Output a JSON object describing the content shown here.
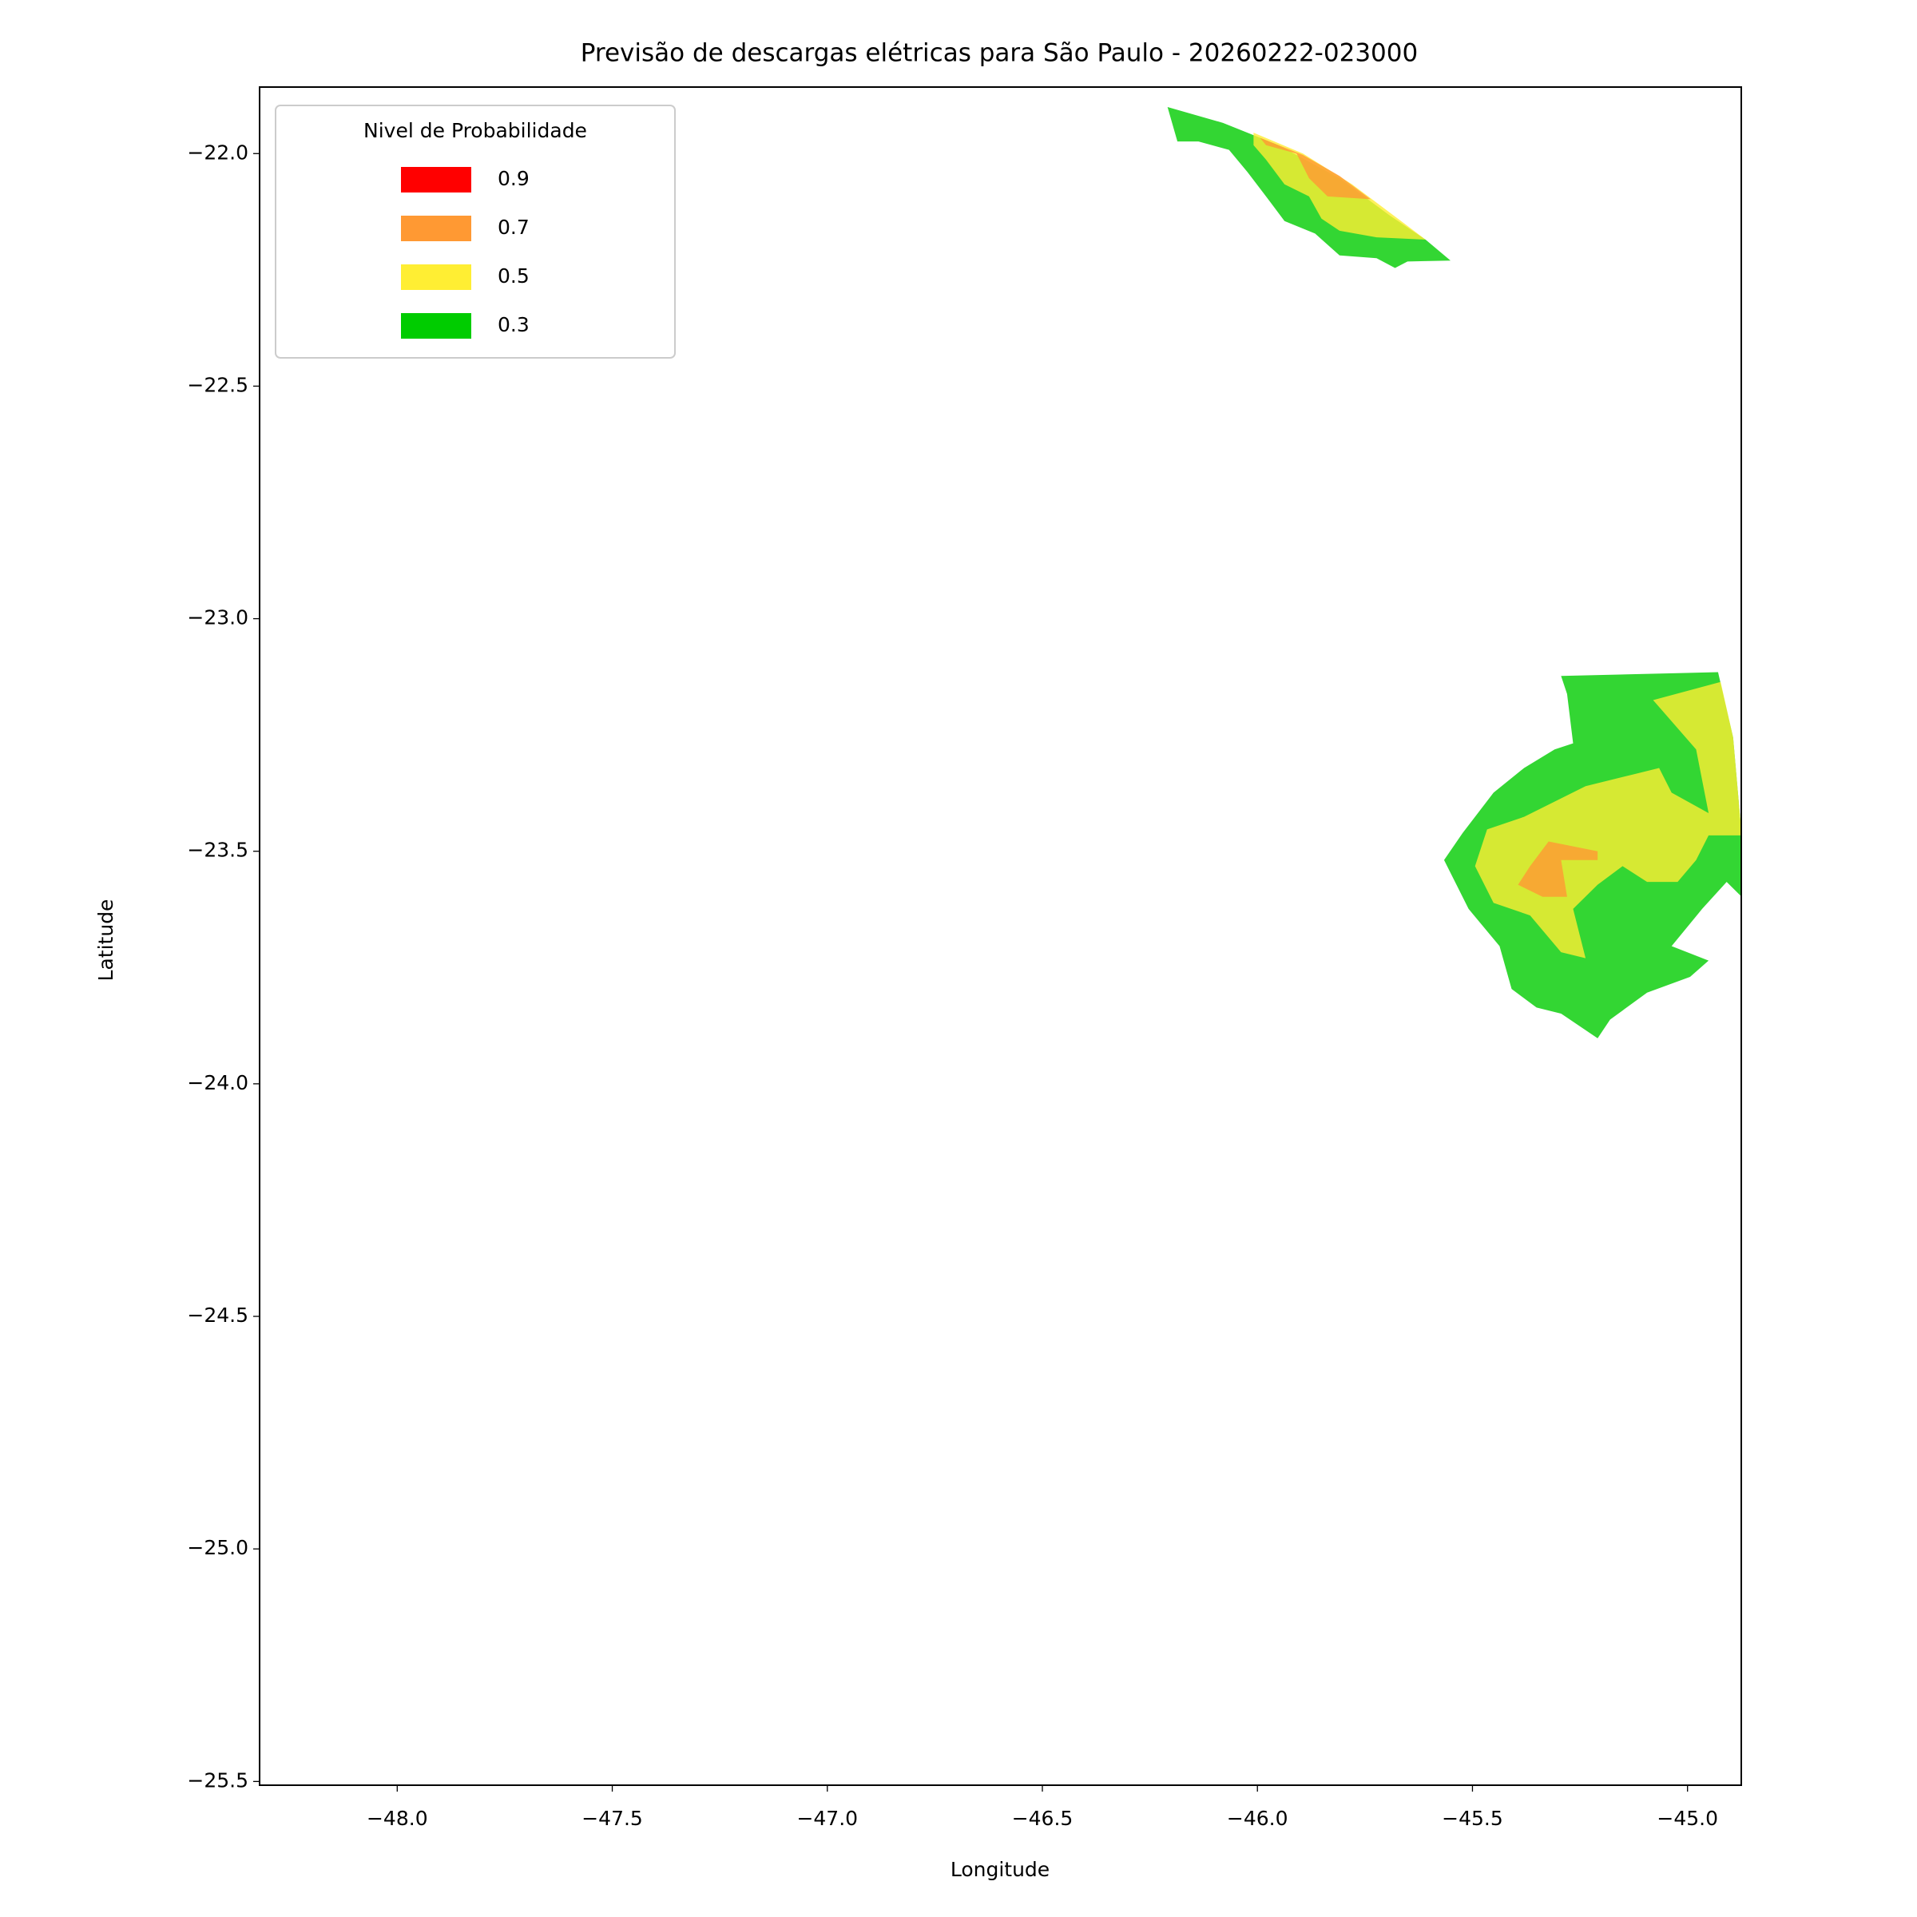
{
  "chart_data": {
    "type": "contour-map",
    "title": "Previsão de descargas elétricas para São Paulo - 20260222-023000",
    "x_label": "Longitude",
    "y_label": "Latitude",
    "legend_title": "Nivel de Probabilidade",
    "legend_position": "upper left",
    "xlim": [
      -48.32,
      -44.875
    ],
    "ylim": [
      -25.508,
      -21.857
    ],
    "xticks": [
      {
        "value": -48,
        "label": "−48.0"
      },
      {
        "value": -47.5,
        "label": "−47.5"
      },
      {
        "value": -47,
        "label": "−47.0"
      },
      {
        "value": -46.5,
        "label": "−46.5"
      },
      {
        "value": -46,
        "label": "−46.0"
      },
      {
        "value": -45.5,
        "label": "−45.5"
      },
      {
        "value": -45,
        "label": "−45.0"
      }
    ],
    "yticks": [
      {
        "value": -22,
        "label": "−22.0"
      },
      {
        "value": -22.5,
        "label": "−22.5"
      },
      {
        "value": -23,
        "label": "−23.0"
      },
      {
        "value": -23.5,
        "label": "−23.5"
      },
      {
        "value": -24,
        "label": "−24.0"
      },
      {
        "value": -24.5,
        "label": "−24.5"
      },
      {
        "value": -25,
        "label": "−25.0"
      },
      {
        "value": -25.5,
        "label": "−25.5"
      }
    ],
    "fill_opacity": 0.8,
    "series": [
      {
        "name": "0.9",
        "color": "#ff0000",
        "polygons": []
      },
      {
        "name": "0.7",
        "color": "#ff9933",
        "polygons": [
          [
            [
              -45.994,
              -21.966
            ],
            [
              -45.894,
              -22.003
            ],
            [
              -45.809,
              -22.048
            ],
            [
              -45.737,
              -22.098
            ],
            [
              -45.837,
              -22.092
            ],
            [
              -45.88,
              -22.053
            ],
            [
              -45.909,
              -22.0
            ],
            [
              -45.98,
              -21.982
            ]
          ],
          [
            [
              -45.323,
              -23.479
            ],
            [
              -45.209,
              -23.5
            ],
            [
              -45.209,
              -23.519
            ],
            [
              -45.294,
              -23.519
            ],
            [
              -45.28,
              -23.598
            ],
            [
              -45.337,
              -23.598
            ],
            [
              -45.394,
              -23.572
            ],
            [
              -45.366,
              -23.532
            ]
          ]
        ]
      },
      {
        "name": "0.5",
        "color": "#ffee33",
        "polygons": [
          [
            [
              -46.009,
              -21.955
            ],
            [
              -45.894,
              -22.0
            ],
            [
              -45.78,
              -22.066
            ],
            [
              -45.666,
              -22.145
            ],
            [
              -45.609,
              -22.185
            ],
            [
              -45.723,
              -22.18
            ],
            [
              -45.809,
              -22.166
            ],
            [
              -45.851,
              -22.14
            ],
            [
              -45.88,
              -22.092
            ],
            [
              -45.937,
              -22.066
            ],
            [
              -45.98,
              -22.013
            ],
            [
              -46.009,
              -21.982
            ]
          ],
          [
            [
              -45.08,
              -23.175
            ],
            [
              -44.923,
              -23.136
            ],
            [
              -44.894,
              -23.255
            ],
            [
              -44.874,
              -23.466
            ],
            [
              -44.951,
              -23.466
            ],
            [
              -44.98,
              -23.519
            ],
            [
              -45.023,
              -23.566
            ],
            [
              -45.094,
              -23.566
            ],
            [
              -45.151,
              -23.532
            ],
            [
              -45.209,
              -23.572
            ],
            [
              -45.266,
              -23.624
            ],
            [
              -45.237,
              -23.73
            ],
            [
              -45.294,
              -23.717
            ],
            [
              -45.366,
              -23.638
            ],
            [
              -45.451,
              -23.611
            ],
            [
              -45.494,
              -23.532
            ],
            [
              -45.466,
              -23.453
            ],
            [
              -45.38,
              -23.426
            ],
            [
              -45.237,
              -23.36
            ],
            [
              -45.123,
              -23.334
            ],
            [
              -45.066,
              -23.321
            ],
            [
              -45.037,
              -23.374
            ],
            [
              -44.951,
              -23.418
            ],
            [
              -44.98,
              -23.281
            ]
          ]
        ]
      },
      {
        "name": "0.3",
        "color": "#00cc00",
        "polygons": [
          [
            [
              -46.209,
              -21.9
            ],
            [
              -46.08,
              -21.934
            ],
            [
              -45.951,
              -21.982
            ],
            [
              -45.809,
              -22.053
            ],
            [
              -45.694,
              -22.132
            ],
            [
              -45.609,
              -22.185
            ],
            [
              -45.551,
              -22.23
            ],
            [
              -45.651,
              -22.232
            ],
            [
              -45.68,
              -22.246
            ],
            [
              -45.723,
              -22.225
            ],
            [
              -45.809,
              -22.219
            ],
            [
              -45.866,
              -22.172
            ],
            [
              -45.937,
              -22.145
            ],
            [
              -45.98,
              -22.092
            ],
            [
              -46.023,
              -22.04
            ],
            [
              -46.066,
              -21.992
            ],
            [
              -46.137,
              -21.974
            ],
            [
              -46.186,
              -21.974
            ]
          ],
          [
            [
              -45.294,
              -23.123
            ],
            [
              -45.023,
              -23.117
            ],
            [
              -44.929,
              -23.115
            ],
            [
              -44.894,
              -23.255
            ],
            [
              -44.874,
              -23.466
            ],
            [
              -44.874,
              -23.598
            ],
            [
              -44.909,
              -23.566
            ],
            [
              -44.966,
              -23.624
            ],
            [
              -45.037,
              -23.704
            ],
            [
              -44.951,
              -23.735
            ],
            [
              -44.994,
              -23.77
            ],
            [
              -45.094,
              -23.804
            ],
            [
              -45.18,
              -23.862
            ],
            [
              -45.209,
              -23.902
            ],
            [
              -45.294,
              -23.849
            ],
            [
              -45.351,
              -23.836
            ],
            [
              -45.409,
              -23.796
            ],
            [
              -45.437,
              -23.704
            ],
            [
              -45.509,
              -23.624
            ],
            [
              -45.566,
              -23.519
            ],
            [
              -45.523,
              -23.461
            ],
            [
              -45.451,
              -23.374
            ],
            [
              -45.38,
              -23.321
            ],
            [
              -45.309,
              -23.281
            ],
            [
              -45.266,
              -23.268
            ],
            [
              -45.28,
              -23.162
            ]
          ]
        ]
      }
    ]
  }
}
